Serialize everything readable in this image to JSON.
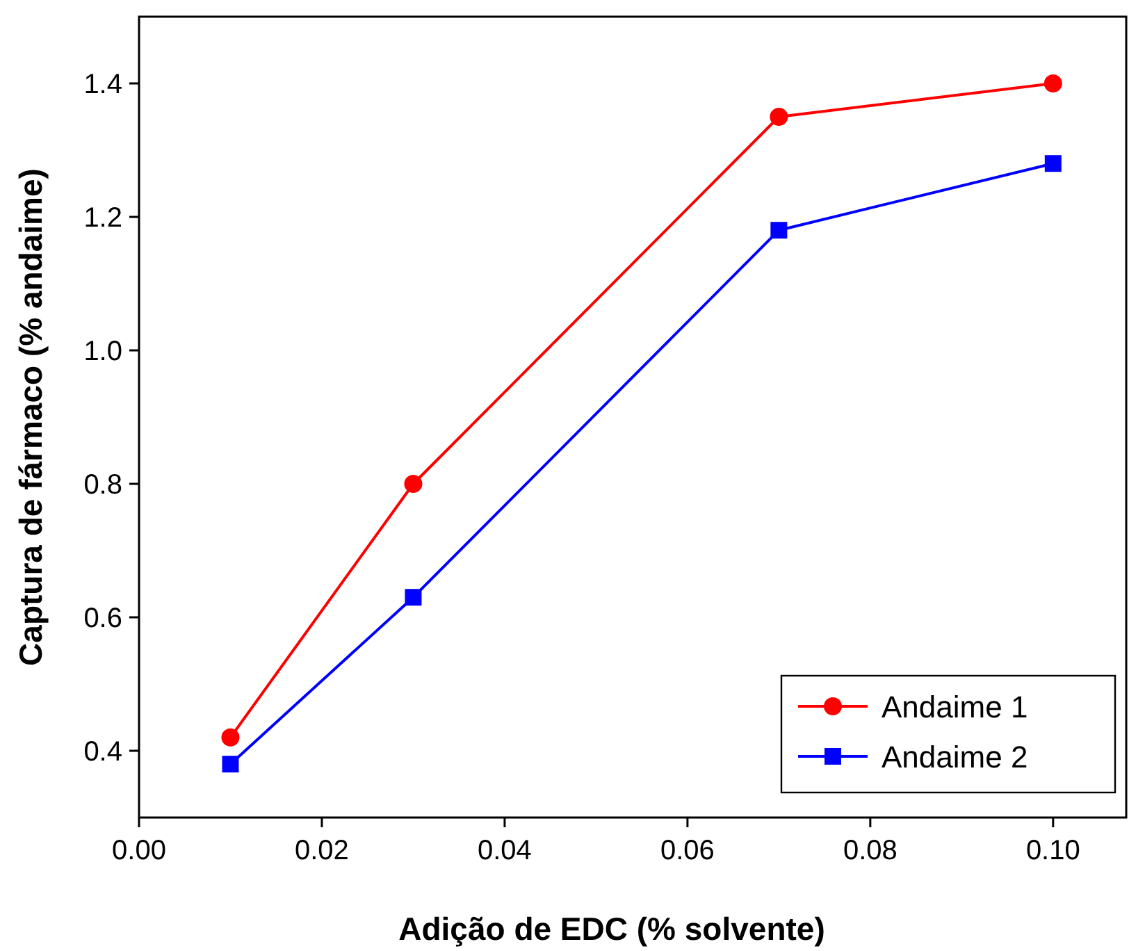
{
  "chart_data": {
    "type": "line",
    "xlabel": "Adição de EDC (% solvente)",
    "ylabel": "Captura de fármaco (% andaime)",
    "x": [
      0.01,
      0.03,
      0.07,
      0.1
    ],
    "series": [
      {
        "name": "Andaime 1",
        "color": "#ff0000",
        "values": [
          0.42,
          0.8,
          1.35,
          1.4
        ],
        "marker": "circle"
      },
      {
        "name": "Andaime 2",
        "color": "#0000ff",
        "values": [
          0.38,
          0.63,
          1.18,
          1.28
        ],
        "marker": "square"
      }
    ],
    "xlim": [
      0,
      0.108
    ],
    "xticks": [
      {
        "value": 0,
        "label": "0.00"
      },
      {
        "value": 0.02,
        "label": "0.02"
      },
      {
        "value": 0.04,
        "label": "0.04"
      },
      {
        "value": 0.06,
        "label": "0.06"
      },
      {
        "value": 0.08,
        "label": "0.08"
      },
      {
        "value": 0.1,
        "label": "0.10"
      }
    ],
    "ylim": [
      0.3,
      1.5
    ],
    "yticks": [
      {
        "value": 0.4,
        "label": "0.4"
      },
      {
        "value": 0.6,
        "label": "0.6"
      },
      {
        "value": 0.8,
        "label": "0.8"
      },
      {
        "value": 1,
        "label": "1.0"
      },
      {
        "value": 1.2,
        "label": "1.2"
      },
      {
        "value": 1.4,
        "label": "1.4"
      }
    ],
    "legend": "bottom right",
    "grid": false,
    "line_style": "solid"
  }
}
